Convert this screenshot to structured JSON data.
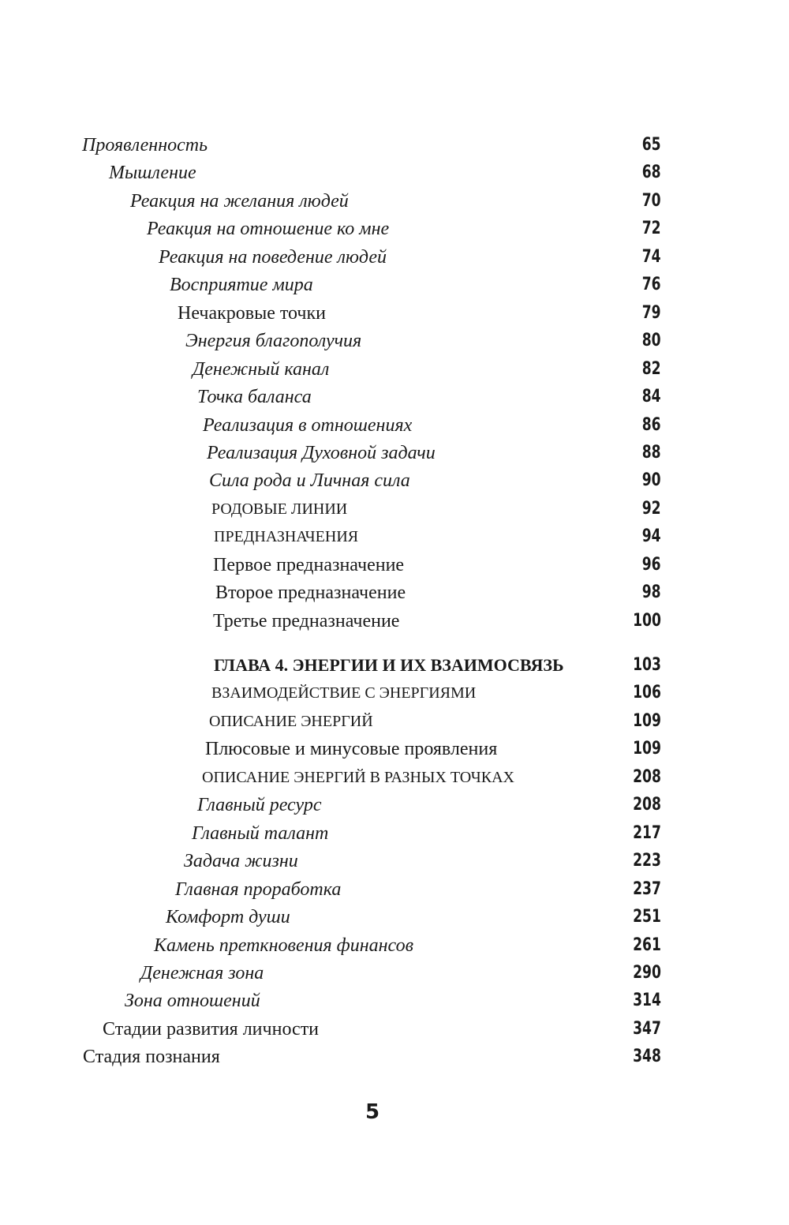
{
  "toc": [
    {
      "title": "Проявленность",
      "page": "65"
    },
    {
      "title": "Мышление",
      "page": "68"
    },
    {
      "title": "Реакция на желания людей",
      "page": "70"
    },
    {
      "title": "Реакция на отношение ко мне",
      "page": "72"
    },
    {
      "title": "Реакция на поведение людей",
      "page": "74"
    },
    {
      "title": "Восприятие мира",
      "page": "76"
    },
    {
      "title": "Нечакровые точки",
      "page": "79"
    },
    {
      "title": "Энергия благополучия",
      "page": "80"
    },
    {
      "title": "Денежный канал",
      "page": "82"
    },
    {
      "title": "Точка баланса",
      "page": "84"
    },
    {
      "title": "Реализация в отношениях",
      "page": "86"
    },
    {
      "title": "Реализация Духовной задачи",
      "page": "88"
    },
    {
      "title": "Сила рода и Личная сила",
      "page": "90"
    },
    {
      "title": "РОДОВЫЕ ЛИНИИ",
      "page": "92"
    },
    {
      "title": "ПРЕДНАЗНАЧЕНИЯ",
      "page": "94"
    },
    {
      "title": "Первое предназначение",
      "page": "96"
    },
    {
      "title": "Второе предназначение",
      "page": "98"
    },
    {
      "title": "Третье предназначение",
      "page": "100"
    },
    {
      "title": "ГЛАВА 4. ЭНЕРГИИ И ИХ ВЗАИМОСВЯЗЬ",
      "page": "103"
    },
    {
      "title": "ВЗАИМОДЕЙСТВИЕ С ЭНЕРГИЯМИ",
      "page": "106"
    },
    {
      "title": "ОПИСАНИЕ ЭНЕРГИЙ",
      "page": "109"
    },
    {
      "title": "Плюсовые и минусовые проявления",
      "page": "109"
    },
    {
      "title": "ОПИСАНИЕ ЭНЕРГИЙ В РАЗНЫХ ТОЧКАХ",
      "page": "208"
    },
    {
      "title": "Главный ресурс",
      "page": "208"
    },
    {
      "title": "Главный талант",
      "page": "217"
    },
    {
      "title": "Задача жизни",
      "page": "223"
    },
    {
      "title": "Главная проработка",
      "page": "237"
    },
    {
      "title": "Комфорт души",
      "page": "251"
    },
    {
      "title": "Камень преткновения финансов",
      "page": "261"
    },
    {
      "title": "Денежная зона",
      "page": "290"
    },
    {
      "title": "Зона отношений",
      "page": "314"
    },
    {
      "title": "Стадии развития личности",
      "page": "347"
    },
    {
      "title": "Стадия познания",
      "page": "348"
    }
  ],
  "page_number": "5"
}
